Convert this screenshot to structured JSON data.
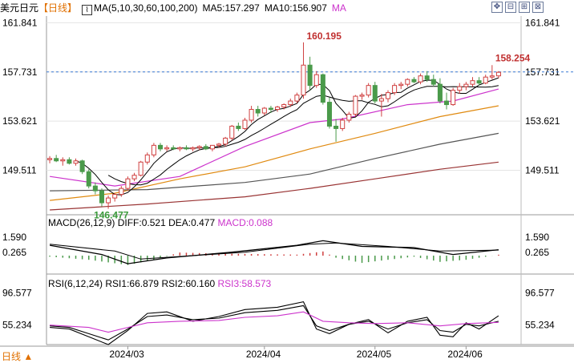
{
  "header": {
    "instrument": "美元日元",
    "period": "【日线】",
    "ma_params": "MA(5,10,30,60,100,200)",
    "ma5": "MA5:157.297",
    "ma10": "MA10:156.907",
    "ma_extra": "MA"
  },
  "toolbar": [
    "✥",
    "⊟",
    "⊞",
    "⊠"
  ],
  "macd_label": {
    "name": "MACD(26,12,9)",
    "diff": "DIFF:0.521",
    "dea": "DEA:0.477",
    "macd": "MACD:0.088"
  },
  "rsi_label": {
    "name": "RSI(6,12,24)",
    "rsi1": "RSI1:66.879",
    "rsi2": "RSI2:60.160",
    "rsi3": "RSI3:58.573"
  },
  "footer": {
    "period_button": "日线 ▲"
  },
  "colors": {
    "up": "#d04040",
    "down": "#4a9a4a",
    "ma5": "#000000",
    "ma10": "#000000",
    "ma30": "#cc33cc",
    "ma60": "#e08a10",
    "ma100": "#555555",
    "ma200": "#993333",
    "rsi1": "#000000",
    "rsi2": "#000000",
    "rsi3": "#cc33cc",
    "dashed": "#3a7bd5"
  },
  "chart_data": {
    "type": "candlestick",
    "price_ylim": [
      145.8,
      162.4
    ],
    "price_ticks": [
      "161.841",
      "157.731",
      "153.621",
      "149.511"
    ],
    "right_ticks": [
      "161.841",
      "157.731",
      "153.621",
      "149.511"
    ],
    "current_price_line": "157.731",
    "x_labels": [
      "2024/03",
      "2024/04",
      "2024/05",
      "2024/06"
    ],
    "annotations": {
      "high": "160.195",
      "low": "146.477",
      "last_high": "158.254"
    },
    "candles": [
      [
        150.4,
        150.7,
        150.1,
        150.5
      ],
      [
        150.5,
        150.8,
        150.2,
        150.3
      ],
      [
        150.3,
        150.6,
        149.9,
        150.4
      ],
      [
        150.4,
        150.6,
        150.0,
        150.1
      ],
      [
        150.1,
        150.5,
        149.9,
        150.3
      ],
      [
        150.3,
        150.4,
        149.2,
        149.4
      ],
      [
        149.4,
        149.6,
        148.0,
        148.2
      ],
      [
        148.2,
        148.5,
        147.5,
        147.8
      ],
      [
        147.8,
        148.0,
        146.5,
        146.8
      ],
      [
        146.8,
        147.4,
        146.3,
        147.2
      ],
      [
        147.2,
        147.6,
        146.9,
        147.5
      ],
      [
        147.5,
        148.2,
        147.3,
        148.0
      ],
      [
        148.0,
        149.0,
        147.8,
        148.8
      ],
      [
        148.8,
        149.3,
        148.6,
        149.1
      ],
      [
        149.1,
        150.3,
        149.0,
        150.2
      ],
      [
        150.2,
        151.0,
        150.0,
        150.8
      ],
      [
        150.8,
        151.8,
        150.6,
        151.6
      ],
      [
        151.6,
        151.8,
        151.1,
        151.3
      ],
      [
        151.3,
        151.6,
        151.1,
        151.4
      ],
      [
        151.4,
        151.6,
        151.2,
        151.3
      ],
      [
        151.3,
        151.5,
        151.1,
        151.4
      ],
      [
        151.4,
        151.6,
        151.2,
        151.3
      ],
      [
        151.3,
        151.5,
        151.1,
        151.4
      ],
      [
        151.4,
        151.6,
        151.2,
        151.5
      ],
      [
        151.5,
        151.7,
        151.2,
        151.3
      ],
      [
        151.3,
        151.6,
        151.1,
        151.6
      ],
      [
        151.6,
        151.8,
        151.4,
        151.7
      ],
      [
        151.7,
        152.3,
        151.5,
        152.2
      ],
      [
        152.2,
        153.3,
        152.0,
        153.2
      ],
      [
        153.2,
        153.5,
        152.8,
        153.0
      ],
      [
        153.0,
        153.9,
        152.9,
        153.7
      ],
      [
        153.7,
        154.9,
        153.5,
        154.6
      ],
      [
        154.6,
        154.9,
        154.0,
        154.3
      ],
      [
        154.3,
        154.8,
        154.1,
        154.7
      ],
      [
        154.7,
        154.9,
        154.3,
        154.6
      ],
      [
        154.6,
        154.9,
        154.4,
        154.8
      ],
      [
        154.8,
        155.1,
        154.6,
        155.0
      ],
      [
        155.0,
        155.5,
        154.8,
        155.3
      ],
      [
        155.3,
        156.0,
        155.1,
        155.8
      ],
      [
        155.8,
        160.2,
        155.5,
        158.3
      ],
      [
        158.3,
        159.0,
        156.2,
        156.6
      ],
      [
        156.6,
        157.8,
        156.4,
        157.5
      ],
      [
        157.5,
        157.6,
        155.0,
        155.2
      ],
      [
        155.2,
        155.6,
        153.0,
        153.2
      ],
      [
        153.2,
        153.8,
        151.9,
        153.0
      ],
      [
        153.0,
        153.9,
        152.8,
        153.7
      ],
      [
        153.7,
        154.4,
        153.5,
        154.2
      ],
      [
        154.2,
        155.8,
        154.0,
        155.7
      ],
      [
        155.7,
        156.0,
        155.4,
        155.8
      ],
      [
        155.8,
        156.8,
        155.6,
        156.6
      ],
      [
        156.6,
        156.9,
        155.1,
        155.3
      ],
      [
        155.3,
        155.9,
        154.0,
        155.5
      ],
      [
        155.5,
        156.2,
        155.2,
        156.0
      ],
      [
        156.0,
        156.8,
        155.8,
        156.6
      ],
      [
        156.6,
        156.9,
        156.3,
        156.7
      ],
      [
        156.7,
        157.2,
        156.5,
        157.1
      ],
      [
        157.1,
        157.3,
        156.8,
        156.9
      ],
      [
        156.9,
        157.6,
        156.7,
        157.4
      ],
      [
        157.4,
        157.8,
        156.9,
        157.1
      ],
      [
        157.1,
        157.5,
        156.5,
        156.7
      ],
      [
        156.7,
        157.2,
        155.1,
        155.3
      ],
      [
        155.3,
        156.0,
        154.6,
        155.0
      ],
      [
        155.0,
        156.4,
        154.9,
        156.2
      ],
      [
        156.2,
        156.8,
        155.9,
        156.5
      ],
      [
        156.5,
        156.9,
        156.2,
        156.7
      ],
      [
        156.7,
        157.3,
        156.5,
        157.0
      ],
      [
        157.0,
        157.3,
        156.6,
        156.8
      ],
      [
        156.8,
        157.5,
        156.7,
        157.3
      ],
      [
        157.3,
        158.3,
        157.1,
        157.4
      ],
      [
        157.4,
        157.8,
        157.2,
        157.7
      ]
    ],
    "ma_series": [
      {
        "name": "MA30",
        "from": 0,
        "points": [
          [
            0,
            149.0
          ],
          [
            10,
            148.2
          ],
          [
            20,
            149.0
          ],
          [
            30,
            151.5
          ],
          [
            40,
            153.5
          ],
          [
            45,
            153.8
          ],
          [
            55,
            155.0
          ],
          [
            62,
            155.3
          ],
          [
            69,
            156.3
          ]
        ]
      },
      {
        "name": "MA60",
        "from": 0,
        "points": [
          [
            0,
            147.0
          ],
          [
            10,
            147.6
          ],
          [
            20,
            148.8
          ],
          [
            30,
            149.8
          ],
          [
            40,
            151.3
          ],
          [
            50,
            152.6
          ],
          [
            60,
            154.0
          ],
          [
            69,
            154.9
          ]
        ]
      },
      {
        "name": "MA100",
        "from": 0,
        "points": [
          [
            0,
            147.8
          ],
          [
            15,
            147.9
          ],
          [
            30,
            148.5
          ],
          [
            40,
            149.2
          ],
          [
            50,
            150.5
          ],
          [
            60,
            151.7
          ],
          [
            69,
            152.6
          ]
        ]
      },
      {
        "name": "MA200",
        "from": 0,
        "points": [
          [
            0,
            146.2
          ],
          [
            15,
            146.7
          ],
          [
            30,
            147.3
          ],
          [
            40,
            148.0
          ],
          [
            50,
            148.8
          ],
          [
            60,
            149.6
          ],
          [
            69,
            150.2
          ]
        ]
      }
    ],
    "macd": {
      "ylim": [
        -1.6,
        2.3
      ],
      "ticks": [
        "1.590",
        "0.265"
      ],
      "diff_points": [
        [
          0,
          0.9
        ],
        [
          8,
          0.1
        ],
        [
          12,
          -0.7
        ],
        [
          18,
          -0.2
        ],
        [
          28,
          0.3
        ],
        [
          38,
          0.9
        ],
        [
          42,
          1.3
        ],
        [
          48,
          0.8
        ],
        [
          56,
          0.7
        ],
        [
          62,
          0.1
        ],
        [
          69,
          0.52
        ]
      ],
      "dea_points": [
        [
          0,
          1.0
        ],
        [
          10,
          0.4
        ],
        [
          14,
          -0.3
        ],
        [
          22,
          0.0
        ],
        [
          30,
          0.3
        ],
        [
          40,
          1.0
        ],
        [
          44,
          1.1
        ],
        [
          52,
          0.8
        ],
        [
          60,
          0.4
        ],
        [
          69,
          0.48
        ]
      ],
      "hist_sign_changes": [
        [
          0,
          -0.1
        ],
        [
          6,
          -0.4
        ],
        [
          12,
          -0.9
        ],
        [
          16,
          -0.4
        ],
        [
          20,
          0.3
        ],
        [
          26,
          0.2
        ],
        [
          32,
          0.15
        ],
        [
          38,
          0.1
        ],
        [
          42,
          0.4
        ],
        [
          44,
          -0.2
        ],
        [
          48,
          -0.7
        ],
        [
          52,
          -0.4
        ],
        [
          56,
          -0.1
        ],
        [
          60,
          -0.6
        ],
        [
          64,
          -0.4
        ],
        [
          69,
          0.09
        ]
      ]
    },
    "rsi": {
      "ylim": [
        30,
        100
      ],
      "ticks": [
        "96.577",
        "55.234"
      ],
      "rsi1": [
        [
          0,
          52
        ],
        [
          3,
          50
        ],
        [
          6,
          40
        ],
        [
          9,
          30
        ],
        [
          12,
          48
        ],
        [
          15,
          70
        ],
        [
          18,
          72
        ],
        [
          22,
          60
        ],
        [
          26,
          66
        ],
        [
          30,
          75
        ],
        [
          35,
          78
        ],
        [
          39,
          85
        ],
        [
          41,
          50
        ],
        [
          43,
          44
        ],
        [
          46,
          56
        ],
        [
          49,
          62
        ],
        [
          52,
          45
        ],
        [
          55,
          60
        ],
        [
          58,
          65
        ],
        [
          60,
          42
        ],
        [
          62,
          40
        ],
        [
          64,
          58
        ],
        [
          66,
          50
        ],
        [
          69,
          67
        ]
      ],
      "rsi2": [
        [
          0,
          54
        ],
        [
          3,
          52
        ],
        [
          6,
          44
        ],
        [
          9,
          36
        ],
        [
          12,
          50
        ],
        [
          15,
          66
        ],
        [
          18,
          68
        ],
        [
          22,
          62
        ],
        [
          26,
          64
        ],
        [
          30,
          71
        ],
        [
          35,
          74
        ],
        [
          39,
          80
        ],
        [
          41,
          54
        ],
        [
          43,
          48
        ],
        [
          46,
          56
        ],
        [
          49,
          60
        ],
        [
          52,
          50
        ],
        [
          55,
          58
        ],
        [
          58,
          62
        ],
        [
          60,
          48
        ],
        [
          62,
          46
        ],
        [
          64,
          56
        ],
        [
          66,
          54
        ],
        [
          69,
          60
        ]
      ],
      "rsi3": [
        [
          0,
          55
        ],
        [
          6,
          52
        ],
        [
          9,
          46
        ],
        [
          12,
          52
        ],
        [
          15,
          58
        ],
        [
          20,
          60
        ],
        [
          26,
          61
        ],
        [
          30,
          65
        ],
        [
          35,
          67
        ],
        [
          39,
          72
        ],
        [
          42,
          60
        ],
        [
          46,
          58
        ],
        [
          50,
          57
        ],
        [
          55,
          58
        ],
        [
          60,
          54
        ],
        [
          64,
          57
        ],
        [
          69,
          58.5
        ]
      ]
    }
  }
}
